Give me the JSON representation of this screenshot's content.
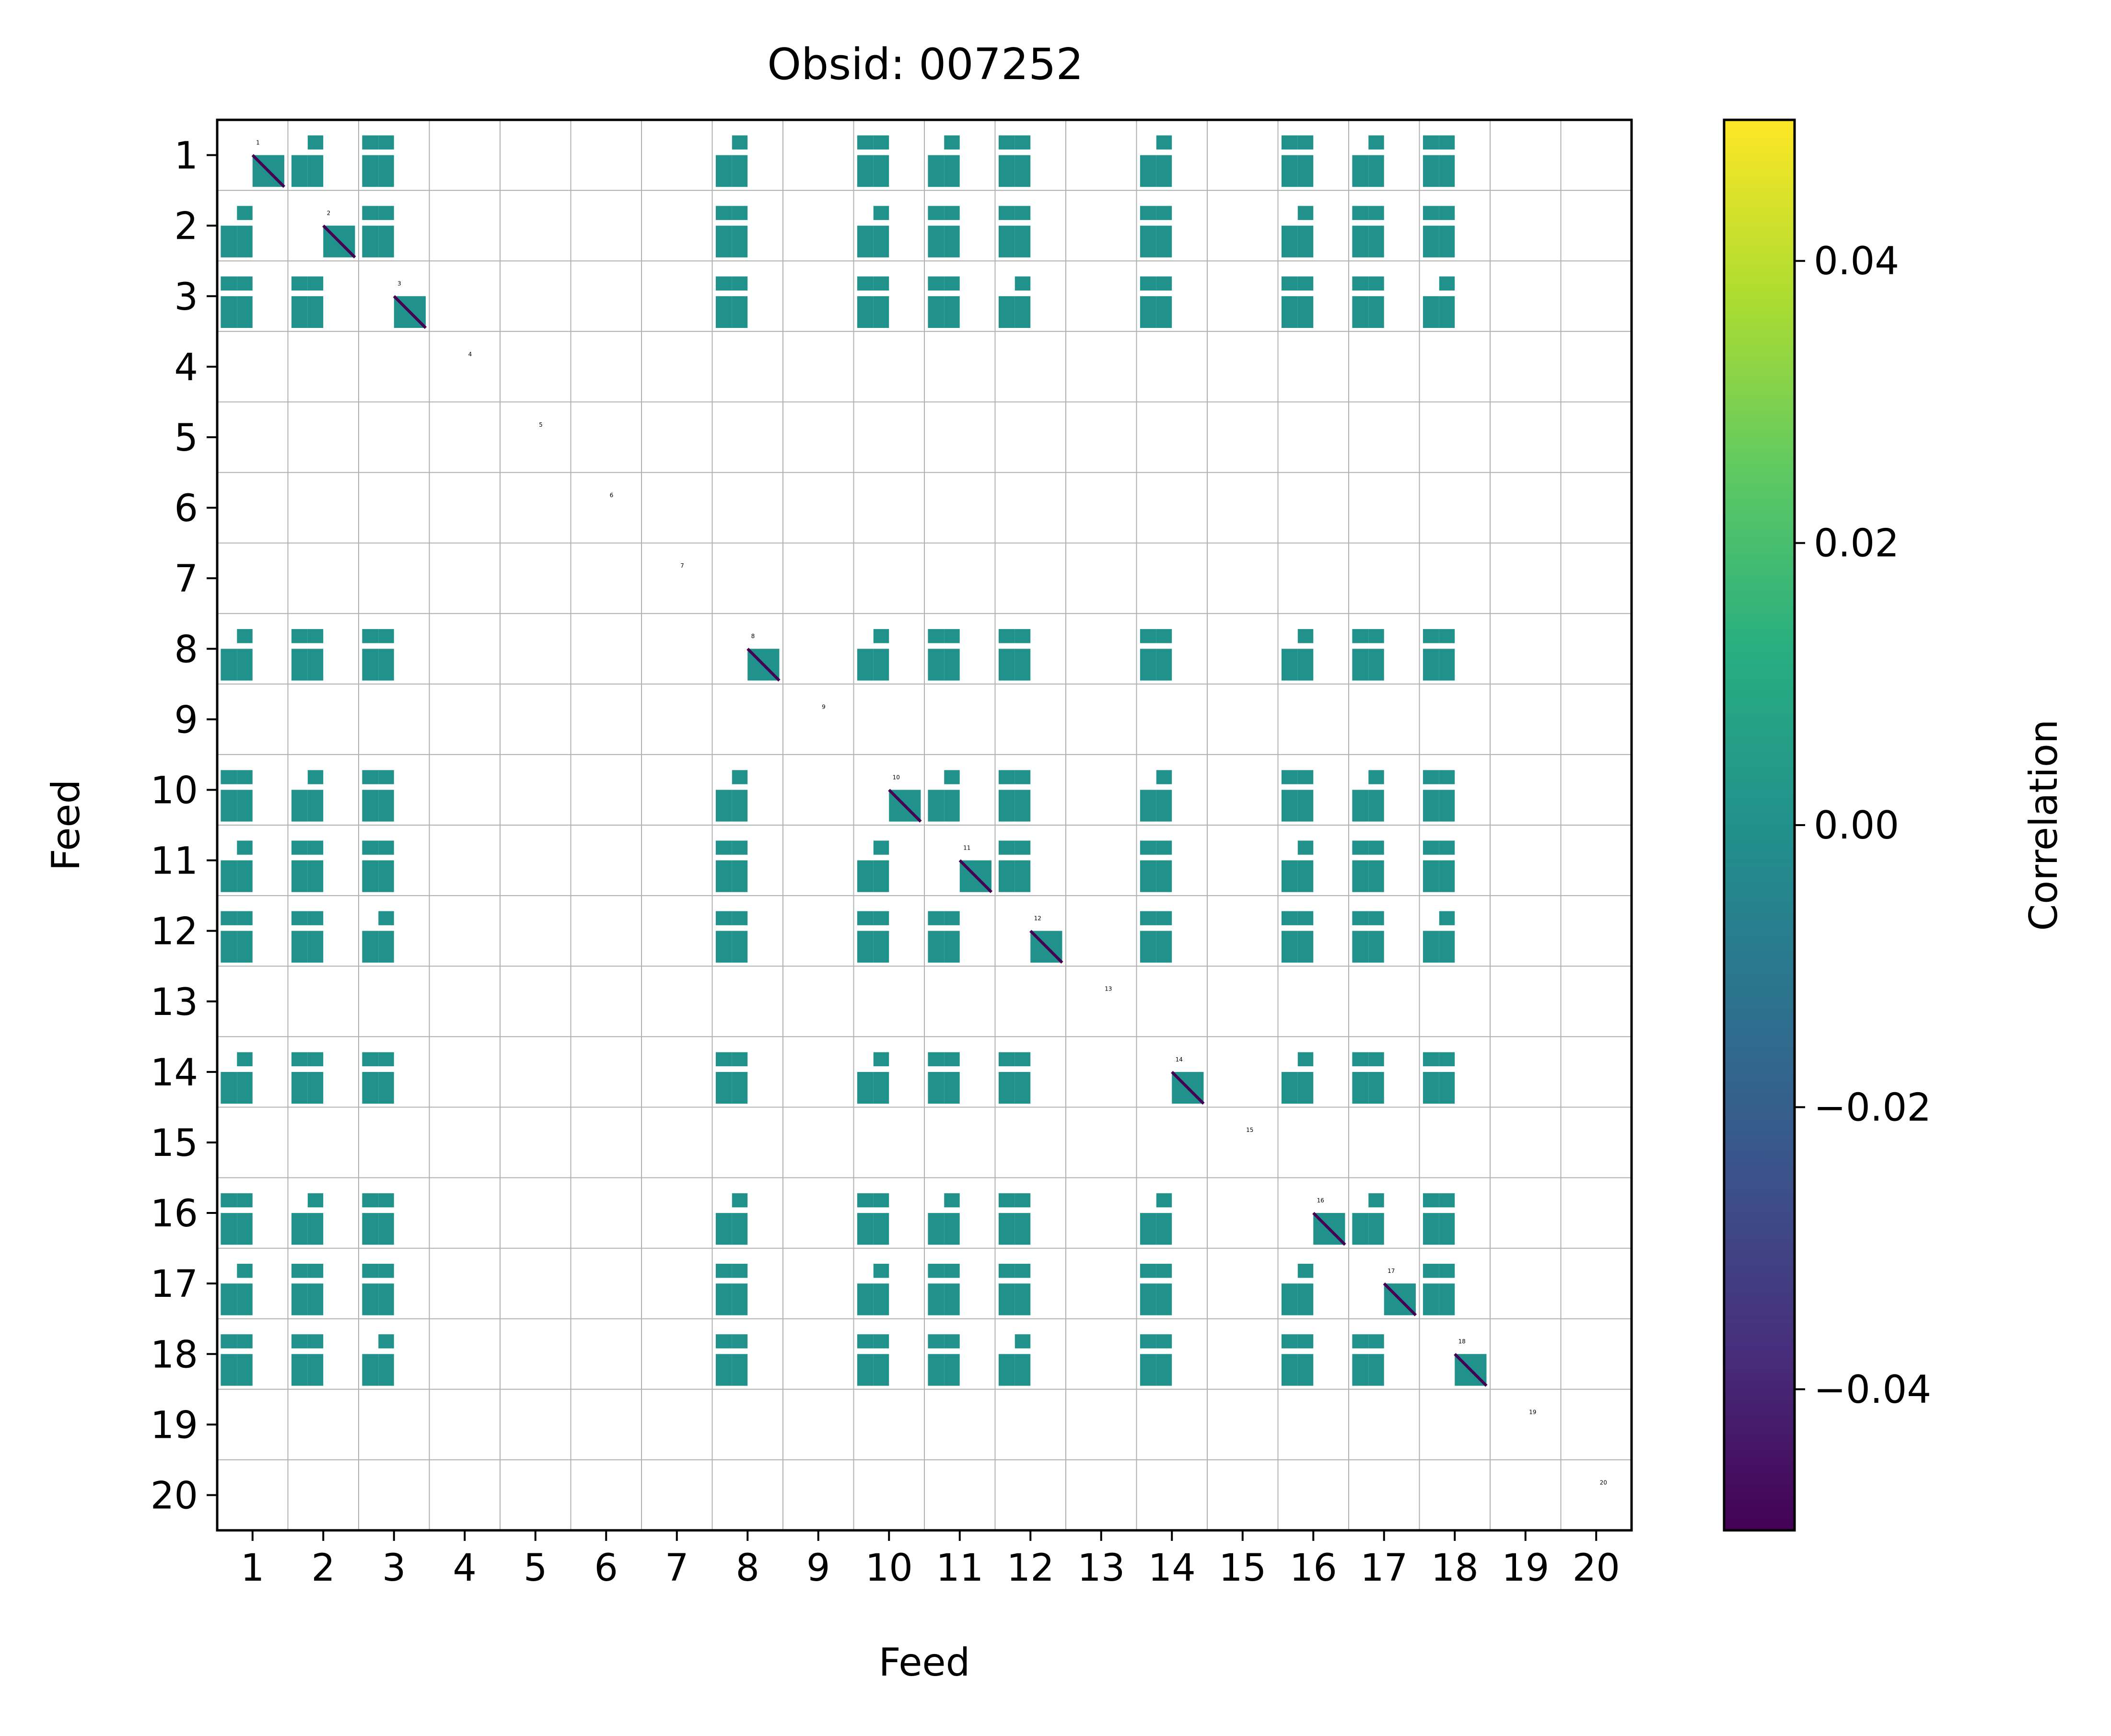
{
  "chart_data": {
    "type": "heatmap",
    "title": "Obsid: 007252",
    "xlabel": "Feed",
    "ylabel": "Feed",
    "x_tick_labels": [
      "1",
      "2",
      "3",
      "4",
      "5",
      "6",
      "7",
      "8",
      "9",
      "10",
      "11",
      "12",
      "13",
      "14",
      "15",
      "16",
      "17",
      "18",
      "19",
      "20"
    ],
    "y_tick_labels": [
      "1",
      "2",
      "3",
      "4",
      "5",
      "6",
      "7",
      "8",
      "9",
      "10",
      "11",
      "12",
      "13",
      "14",
      "15",
      "16",
      "17",
      "18",
      "19",
      "20"
    ],
    "diagonal_feed_labels": [
      "1",
      "2",
      "3",
      "4",
      "5",
      "6",
      "7",
      "8",
      "9",
      "10",
      "11",
      "12",
      "13",
      "14",
      "15",
      "16",
      "17",
      "18",
      "19",
      "20"
    ],
    "colorbar": {
      "label": "Correlation",
      "vmin": -0.05,
      "vmax": 0.05,
      "ticks": [
        -0.04,
        -0.02,
        0.0,
        0.02,
        0.04
      ],
      "tick_labels": [
        "−0.04",
        "−0.02",
        "0.00",
        "0.02",
        "0.04"
      ],
      "colormap": "viridis"
    },
    "cell_value_estimate": 0.0,
    "diagonal_value_estimate": -0.05,
    "grid": true,
    "active_feeds": [
      1,
      2,
      3,
      8,
      10,
      11,
      12,
      14,
      16,
      17,
      18
    ],
    "inactive_feeds": [
      4,
      5,
      6,
      7,
      9,
      13,
      15,
      19,
      20
    ],
    "colors": {
      "cell": "#21918c",
      "diagonal": "#440154",
      "grid": "#b0b0b0"
    }
  }
}
